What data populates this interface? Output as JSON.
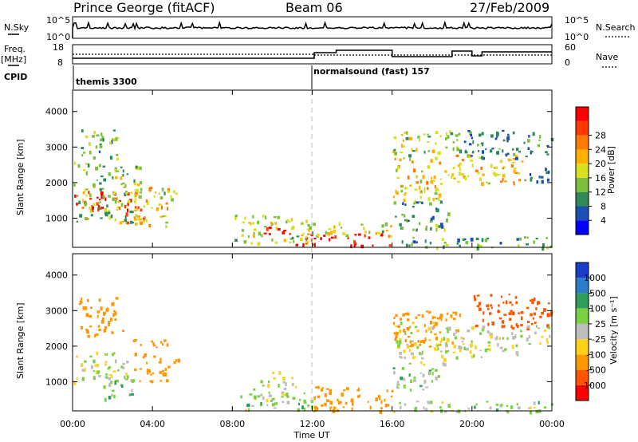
{
  "header": {
    "station": "Prince George (fitACF)",
    "beam": "Beam 06",
    "date": "27/Feb/2009"
  },
  "top_panels": {
    "nsky_label": "N.Sky",
    "nsky_ticks": [
      "10^5",
      "10^0"
    ],
    "nsearch_label": "N.Search",
    "nsearch_ticks": [
      "10^5",
      "10^0"
    ],
    "freq_label_line1": "Freq.",
    "freq_label_line2": "[MHz]",
    "freq_ticks": [
      "18",
      "8"
    ],
    "nave_label": "Nave",
    "nave_ticks": [
      "60",
      "0"
    ],
    "cpid_label": "CPID",
    "cpid_segments": [
      {
        "name": "themis 3300",
        "start_hour": 0
      },
      {
        "name": "normalsound (fast) 157",
        "start_hour": 12
      }
    ]
  },
  "axes": {
    "y_label": "Slant Range [km]",
    "y_ticks": [
      "1000",
      "2000",
      "3000",
      "4000"
    ],
    "x_label": "Time UT",
    "x_ticks": [
      "00:00",
      "04:00",
      "08:00",
      "12:00",
      "16:00",
      "20:00",
      "00:00"
    ]
  },
  "colorbars": {
    "power": {
      "label": "Power [dB]",
      "tick_labels": [
        "4",
        "8",
        "12",
        "16",
        "20",
        "24",
        "28"
      ],
      "colors": [
        "#0000ff",
        "#1a4fb5",
        "#2e8b57",
        "#7cc03c",
        "#d8e020",
        "#ffb000",
        "#ff7a00",
        "#ff3a00",
        "#ff0000"
      ]
    },
    "velocity": {
      "label": "Velocity [m s⁻¹]",
      "tick_labels": [
        "1000",
        "500",
        "100",
        "25",
        "-25",
        "-100",
        "-500",
        "-1000"
      ],
      "colors": [
        "#1a3ec8",
        "#2b7cc9",
        "#2e9e58",
        "#7cd143",
        "#bdbdbd",
        "#ffd21a",
        "#ff9800",
        "#ff5500",
        "#ff0000"
      ]
    }
  },
  "chart_data": [
    {
      "type": "heatmap",
      "title": "Power",
      "xlabel": "Time UT",
      "ylabel": "Slant Range [km]",
      "xlim_hours": [
        0,
        24
      ],
      "ylim_km": [
        180,
        4600
      ],
      "zlabel": "Power [dB]",
      "zlim": [
        0,
        30
      ],
      "regions": [
        {
          "t0": 0.0,
          "t1": 3.0,
          "r0": 1200,
          "r1": 1800,
          "level": 27
        },
        {
          "t0": 0.0,
          "t1": 3.4,
          "r0": 900,
          "r1": 2600,
          "level": 12
        },
        {
          "t0": 2.2,
          "t1": 3.6,
          "r0": 900,
          "r1": 1500,
          "level": 22
        },
        {
          "t0": 0.3,
          "t1": 2.3,
          "r0": 2700,
          "r1": 3500,
          "level": 10
        },
        {
          "t0": 3.0,
          "t1": 4.8,
          "r0": 700,
          "r1": 1900,
          "level": 18
        },
        {
          "t0": 4.3,
          "t1": 5.6,
          "r0": 1400,
          "r1": 1800,
          "level": 12
        },
        {
          "t0": 8.0,
          "t1": 11.8,
          "r0": 300,
          "r1": 1100,
          "level": 14
        },
        {
          "t0": 9.3,
          "t1": 10.8,
          "r0": 550,
          "r1": 800,
          "level": 29
        },
        {
          "t0": 10.8,
          "t1": 15.9,
          "r0": 250,
          "r1": 600,
          "level": 27
        },
        {
          "t0": 11.5,
          "t1": 15.9,
          "r0": 500,
          "r1": 900,
          "level": 14
        },
        {
          "t0": 16.0,
          "t1": 18.5,
          "r0": 1500,
          "r1": 2700,
          "level": 17
        },
        {
          "t0": 16.0,
          "t1": 19.5,
          "r0": 2700,
          "r1": 3500,
          "level": 13
        },
        {
          "t0": 16.0,
          "t1": 18.8,
          "r0": 700,
          "r1": 1500,
          "level": 9
        },
        {
          "t0": 18.5,
          "t1": 22.5,
          "r0": 2000,
          "r1": 2800,
          "level": 18
        },
        {
          "t0": 19.6,
          "t1": 24.0,
          "r0": 2700,
          "r1": 3500,
          "level": 8
        },
        {
          "t0": 22.5,
          "t1": 24.0,
          "r0": 2000,
          "r1": 2500,
          "level": 7
        },
        {
          "t0": 16.0,
          "t1": 24.0,
          "r0": 180,
          "r1": 500,
          "level": 10
        }
      ]
    },
    {
      "type": "heatmap",
      "title": "Velocity",
      "xlabel": "Time UT",
      "ylabel": "Slant Range [km]",
      "xlim_hours": [
        0,
        24
      ],
      "ylim_km": [
        180,
        4600
      ],
      "zlabel": "Velocity [m s⁻¹]",
      "zlim": [
        -1000,
        1000
      ],
      "regions": [
        {
          "t0": 0.0,
          "t1": 2.8,
          "r0": 1000,
          "r1": 1900,
          "level": 0
        },
        {
          "t0": 0.3,
          "t1": 2.5,
          "r0": 2300,
          "r1": 3400,
          "level": -300
        },
        {
          "t0": 1.5,
          "t1": 3.2,
          "r0": 500,
          "r1": 1100,
          "level": 60
        },
        {
          "t0": 3.0,
          "t1": 4.8,
          "r0": 1000,
          "r1": 2200,
          "level": -300
        },
        {
          "t0": 5.0,
          "t1": 5.6,
          "r0": 1500,
          "r1": 1800,
          "level": -250
        },
        {
          "t0": 8.0,
          "t1": 12.0,
          "r0": 200,
          "r1": 700,
          "level": 40
        },
        {
          "t0": 9.0,
          "t1": 11.2,
          "r0": 600,
          "r1": 1300,
          "level": 0
        },
        {
          "t0": 12.0,
          "t1": 16.0,
          "r0": 200,
          "r1": 900,
          "level": -200
        },
        {
          "t0": 16.0,
          "t1": 18.8,
          "r0": 1500,
          "r1": 2700,
          "level": 0
        },
        {
          "t0": 16.0,
          "t1": 19.5,
          "r0": 2000,
          "r1": 3000,
          "level": -350
        },
        {
          "t0": 16.0,
          "t1": 18.5,
          "r0": 800,
          "r1": 1500,
          "level": 60
        },
        {
          "t0": 18.6,
          "t1": 22.5,
          "r0": 1700,
          "r1": 2600,
          "level": 0
        },
        {
          "t0": 20.0,
          "t1": 24.0,
          "r0": 2500,
          "r1": 3500,
          "level": -600
        },
        {
          "t0": 22.5,
          "t1": 24.0,
          "r0": 2000,
          "r1": 2600,
          "level": 0
        },
        {
          "t0": 16.0,
          "t1": 24.0,
          "r0": 180,
          "r1": 500,
          "level": 40
        }
      ]
    }
  ]
}
